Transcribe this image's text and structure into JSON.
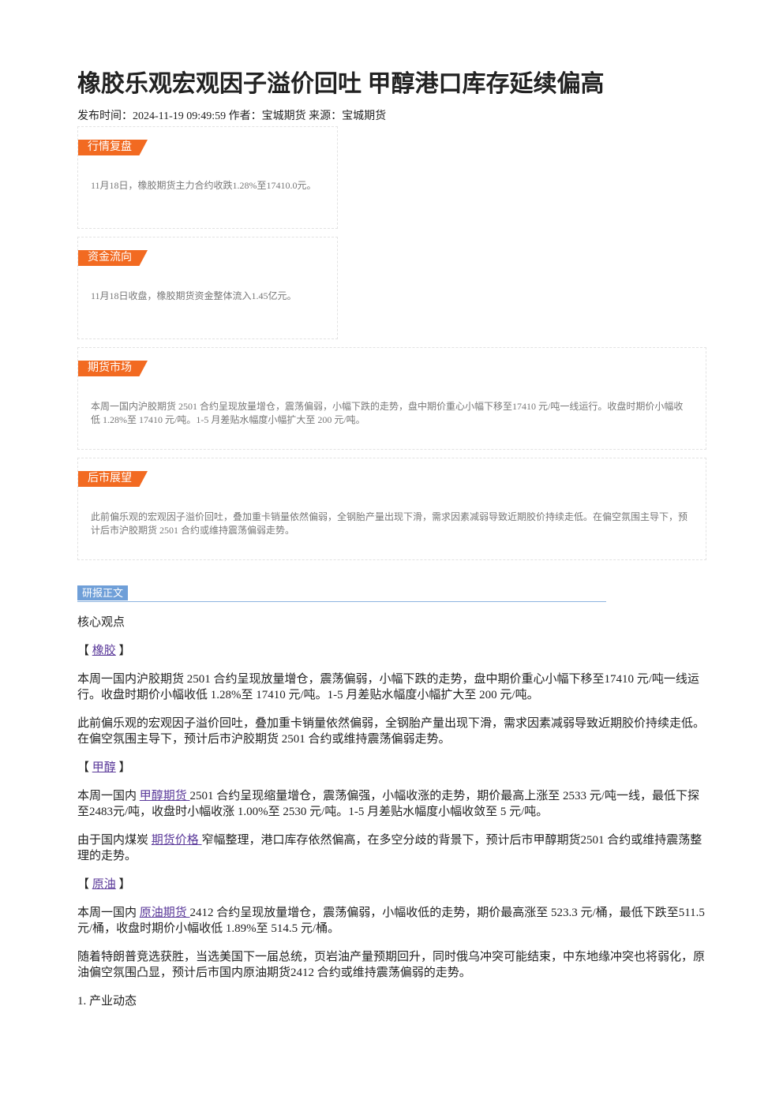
{
  "title": "橡胶乐观宏观因子溢价回吐 甲醇港口库存延续偏高",
  "meta": "发布时间：2024-11-19 09:49:59 作者：宝城期货 来源：宝城期货",
  "boxes": [
    {
      "label": "行情复盘",
      "text": "11月18日，橡胶期货主力合约收跌1.28%至17410.0元。",
      "wide": false
    },
    {
      "label": "资金流向",
      "text": "11月18日收盘，橡胶期货资金整体流入1.45亿元。",
      "wide": false
    },
    {
      "label": "期货市场",
      "text": "本周一国内沪胶期货 2501 合约呈现放量增仓，震荡偏弱，小幅下跌的走势，盘中期价重心小幅下移至17410 元/吨一线运行。收盘时期价小幅收低 1.28%至 17410 元/吨。1-5 月差贴水幅度小幅扩大至 200 元/吨。",
      "wide": true
    },
    {
      "label": "后市展望",
      "text": "此前偏乐观的宏观因子溢价回吐，叠加重卡销量依然偏弱，全钢胎产量出现下滑，需求因素减弱导致近期胶价持续走低。在偏空氛围主导下，预计后市沪胶期货 2501 合约或维持震荡偏弱走势。",
      "wide": true
    }
  ],
  "section_label": "研报正文",
  "body": [
    [
      {
        "text": "核心观点"
      }
    ],
    [
      {
        "text": "【 "
      },
      {
        "text": "橡胶",
        "link": true
      },
      {
        "text": " 】"
      }
    ],
    [
      {
        "text": "本周一国内沪胶期货 2501 合约呈现放量增仓，震荡偏弱，小幅下跌的走势，盘中期价重心小幅下移至17410 元/吨一线运行。收盘时期价小幅收低 1.28%至 17410 元/吨。1-5 月差贴水幅度小幅扩大至 200 元/吨。"
      }
    ],
    [
      {
        "text": "此前偏乐观的宏观因子溢价回吐，叠加重卡销量依然偏弱，全钢胎产量出现下滑，需求因素减弱导致近期胶价持续走低。在偏空氛围主导下，预计后市沪胶期货 2501 合约或维持震荡偏弱走势。"
      }
    ],
    [
      {
        "text": "【 "
      },
      {
        "text": "甲醇",
        "link": true
      },
      {
        "text": " 】"
      }
    ],
    [
      {
        "text": "本周一国内 "
      },
      {
        "text": "甲醇期货 ",
        "link": true
      },
      {
        "text": "2501 合约呈现缩量增仓，震荡偏强，小幅收涨的走势，期价最高上涨至 2533 元/吨一线，最低下探至2483元/吨，收盘时小幅收涨 1.00%至 2530 元/吨。1-5 月差贴水幅度小幅收敛至 5 元/吨。"
      }
    ],
    [
      {
        "text": "由于国内煤炭 "
      },
      {
        "text": "期货价格 ",
        "link": true
      },
      {
        "text": "窄幅整理，港口库存依然偏高，在多空分歧的背景下，预计后市甲醇期货2501 合约或维持震荡整理的走势。"
      }
    ],
    [
      {
        "text": "【 "
      },
      {
        "text": "原油",
        "link": true
      },
      {
        "text": " 】"
      }
    ],
    [
      {
        "text": "本周一国内 "
      },
      {
        "text": "原油期货 ",
        "link": true
      },
      {
        "text": "2412 合约呈现放量增仓，震荡偏弱，小幅收低的走势，期价最高涨至 523.3 元/桶，最低下跌至511.5元/桶，收盘时期价小幅收低 1.89%至 514.5 元/桶。"
      }
    ],
    [
      {
        "text": "随着特朗普竞选获胜，当选美国下一届总统，页岩油产量预期回升，同时俄乌冲突可能结束，中东地缘冲突也将弱化，原油偏空氛围凸显，预计后市国内原油期货2412 合约或维持震荡偏弱的走势。"
      }
    ],
    [
      {
        "text": "1. 产业动态"
      }
    ]
  ]
}
